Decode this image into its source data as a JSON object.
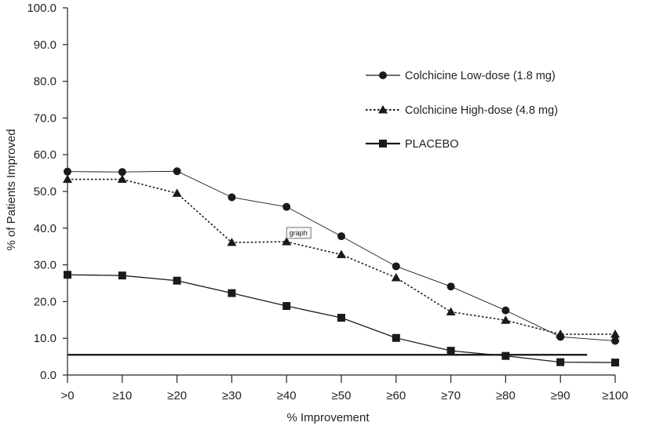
{
  "chart_data": {
    "type": "line",
    "title": "",
    "xlabel": "% Improvement",
    "ylabel": "% of Patients Improved",
    "categories": [
      ">0",
      "≥10",
      "≥20",
      "≥30",
      "≥40",
      "≥50",
      "≥60",
      "≥70",
      "≥80",
      "≥90",
      "≥100"
    ],
    "ylim": [
      0,
      100
    ],
    "yticks": [
      "0.0",
      "10.0",
      "20.0",
      "30.0",
      "40.0",
      "50.0",
      "60.0",
      "70.0",
      "80.0",
      "90.0",
      "100.0"
    ],
    "grid": false,
    "legend_position": "right",
    "series": [
      {
        "name": "Colchicine Low-dose (1.8 mg)",
        "marker": "circle",
        "line_style": "solid-thin",
        "color": "#1a1a1a",
        "values": [
          55.4,
          55.3,
          55.5,
          48.4,
          45.8,
          37.8,
          29.6,
          24.1,
          17.6,
          10.4,
          9.3
        ]
      },
      {
        "name": "Colchicine High-dose (4.8 mg)",
        "marker": "triangle",
        "line_style": "dotted",
        "color": "#1a1a1a",
        "values": [
          53.3,
          53.3,
          49.5,
          36.1,
          36.3,
          32.8,
          26.5,
          17.2,
          14.9,
          11.1,
          11.1
        ]
      },
      {
        "name": "PLACEBO",
        "marker": "square",
        "line_style": "solid",
        "color": "#1a1a1a",
        "values": [
          27.3,
          27.1,
          25.7,
          22.3,
          18.8,
          15.6,
          10.1,
          6.6,
          5.2,
          3.5,
          3.4
        ]
      }
    ],
    "reference_line": {
      "y": 5.5,
      "x_start": ">0",
      "x_end": "≥90"
    },
    "annotations": [
      {
        "text": "graph",
        "x": "≥40",
        "y": 38.7
      }
    ]
  }
}
